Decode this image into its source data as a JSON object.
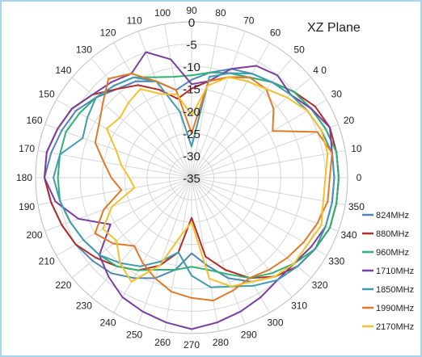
{
  "chart_data": {
    "type": "polar-line",
    "title": "XZ  Plane",
    "radial_axis": {
      "min": -35,
      "max": 0,
      "ticks": [
        0,
        -5,
        -10,
        -15,
        -20,
        -25,
        -30,
        -35
      ],
      "tick_labels": [
        "0",
        "-5",
        "-10",
        "-15",
        "-20",
        "-25",
        "-30",
        "-35"
      ]
    },
    "angle_axis": {
      "ticks": [
        0,
        10,
        20,
        30,
        40,
        50,
        60,
        70,
        80,
        90,
        100,
        110,
        120,
        130,
        140,
        150,
        160,
        170,
        180,
        190,
        200,
        210,
        220,
        230,
        240,
        250,
        260,
        270,
        280,
        290,
        300,
        310,
        320,
        330,
        340,
        350
      ],
      "tick_labels": [
        "0",
        "10",
        "20",
        "30",
        "4 0",
        "50",
        "60",
        "70",
        "80",
        "90",
        "100",
        "110",
        "120",
        "130",
        "140",
        "150",
        "160",
        "170",
        "180",
        "190",
        "200",
        "210",
        "220",
        "230",
        "240",
        "250",
        "260",
        "270",
        "280",
        "290",
        "300",
        "310",
        "320",
        "330",
        "340",
        "350"
      ]
    },
    "grid": true,
    "legend_position": "bottom-right",
    "series": [
      {
        "name": "824MHz",
        "color": "#4e86b8",
        "angles": [
          0,
          10,
          20,
          30,
          40,
          50,
          60,
          70,
          80,
          90,
          100,
          110,
          120,
          130,
          140,
          150,
          160,
          170,
          180,
          190,
          200,
          210,
          220,
          230,
          240,
          250,
          260,
          270,
          280,
          290,
          300,
          310,
          320,
          330,
          340,
          350
        ],
        "values": [
          -2,
          -2,
          -3,
          -4,
          -5,
          -7,
          -8,
          -9,
          -11,
          -13,
          -15,
          -12,
          -10,
          -9,
          -7,
          -5,
          -4,
          -3,
          -2,
          -3,
          -4,
          -5,
          -6,
          -7,
          -9,
          -11,
          -14,
          -18,
          -15,
          -11,
          -8,
          -6,
          -4,
          -3,
          -2,
          -2
        ]
      },
      {
        "name": "880MHz",
        "color": "#b32c2c",
        "angles": [
          0,
          10,
          20,
          30,
          40,
          50,
          60,
          70,
          80,
          90,
          100,
          110,
          120,
          130,
          140,
          150,
          160,
          170,
          180,
          190,
          200,
          210,
          220,
          230,
          240,
          250,
          260,
          270,
          280,
          290,
          300,
          310,
          320,
          330,
          340,
          350
        ],
        "values": [
          -2,
          -2,
          -2,
          -3,
          -5,
          -7,
          -9,
          -11,
          -13,
          -15,
          -17,
          -14,
          -11,
          -9,
          -6,
          -4,
          -3,
          -2,
          -2,
          -3,
          -4,
          -5,
          -7,
          -9,
          -11,
          -14,
          -18,
          -26,
          -17,
          -13,
          -9,
          -6,
          -4,
          -3,
          -2,
          -2
        ]
      },
      {
        "name": "960MHz",
        "color": "#2fb372",
        "angles": [
          0,
          10,
          20,
          30,
          40,
          50,
          60,
          70,
          80,
          90,
          100,
          110,
          120,
          130,
          140,
          150,
          160,
          170,
          180,
          190,
          200,
          210,
          220,
          230,
          240,
          250,
          260,
          270,
          280,
          290,
          300,
          310,
          320,
          330,
          340,
          350
        ],
        "values": [
          -2,
          -2,
          -3,
          -4,
          -5,
          -7,
          -9,
          -10,
          -11,
          -12,
          -12,
          -11,
          -9,
          -8,
          -7,
          -6,
          -5,
          -5,
          -5,
          -5,
          -6,
          -7,
          -8,
          -9,
          -11,
          -13,
          -14,
          -15,
          -14,
          -12,
          -9,
          -7,
          -5,
          -3,
          -2,
          -2
        ]
      },
      {
        "name": "1710MHz",
        "color": "#7b3fa0",
        "angles": [
          0,
          10,
          20,
          30,
          40,
          50,
          60,
          70,
          80,
          90,
          100,
          110,
          120,
          130,
          140,
          150,
          160,
          170,
          180,
          190,
          200,
          210,
          220,
          230,
          240,
          250,
          260,
          270,
          280,
          290,
          300,
          310,
          320,
          330,
          340,
          350
        ],
        "values": [
          -3,
          -3,
          -2,
          -4,
          -6,
          -5,
          -6,
          -9,
          -13,
          -14,
          -8,
          -5,
          -8,
          -7,
          -6,
          -4,
          -3,
          -2,
          -2,
          -4,
          -8,
          -14,
          -8,
          -6,
          -4,
          -3,
          -2,
          -1,
          -2,
          -3,
          -4,
          -5,
          -5,
          -4,
          -3,
          -3
        ]
      },
      {
        "name": "1850MHz",
        "color": "#3f9bb0",
        "angles": [
          0,
          10,
          20,
          30,
          40,
          50,
          60,
          70,
          80,
          90,
          100,
          110,
          120,
          130,
          140,
          150,
          160,
          170,
          180,
          190,
          200,
          210,
          220,
          230,
          240,
          250,
          260,
          270,
          280,
          290,
          300,
          310,
          320,
          330,
          340,
          350
        ],
        "values": [
          -3,
          -3,
          -4,
          -5,
          -6,
          -7,
          -8,
          -10,
          -12,
          -28,
          -20,
          -12,
          -9,
          -8,
          -7,
          -8,
          -9,
          -5,
          -4,
          -5,
          -6,
          -7,
          -8,
          -10,
          -12,
          -15,
          -18,
          -13,
          -10,
          -9,
          -7,
          -5,
          -4,
          -3,
          -3,
          -3
        ]
      },
      {
        "name": "1990MHz",
        "color": "#e07a28",
        "angles": [
          0,
          10,
          20,
          30,
          40,
          50,
          60,
          70,
          80,
          90,
          100,
          110,
          120,
          130,
          140,
          150,
          160,
          170,
          180,
          190,
          200,
          210,
          220,
          230,
          240,
          250,
          260,
          270,
          280,
          290,
          300,
          310,
          320,
          330,
          340,
          350
        ],
        "values": [
          -4,
          -3,
          -5,
          -14,
          -11,
          -9,
          -9,
          -11,
          -13,
          -25,
          -15,
          -12,
          -8,
          -6,
          -9,
          -11,
          -12,
          -15,
          -17,
          -19,
          -14,
          -10,
          -12,
          -15,
          -13,
          -11,
          -9,
          -8,
          -7,
          -8,
          -9,
          -8,
          -7,
          -6,
          -5,
          -4
        ]
      },
      {
        "name": "2170MHz",
        "color": "#f2c12e",
        "angles": [
          0,
          10,
          20,
          30,
          40,
          50,
          60,
          70,
          80,
          90,
          100,
          110,
          120,
          130,
          140,
          150,
          160,
          170,
          180,
          190,
          200,
          210,
          220,
          230,
          240,
          250,
          260,
          270,
          280,
          290,
          300,
          310,
          320,
          330,
          340,
          350
        ],
        "values": [
          -5,
          -4,
          -4,
          -5,
          -7,
          -9,
          -10,
          -11,
          -14,
          -21,
          -16,
          -15,
          -12,
          -13,
          -14,
          -13,
          -17,
          -19,
          -21,
          -22,
          -16,
          -12,
          -13,
          -10,
          -8,
          -14,
          -22,
          -25,
          -12,
          -9,
          -8,
          -6,
          -5,
          -5,
          -4,
          -5
        ]
      }
    ]
  }
}
